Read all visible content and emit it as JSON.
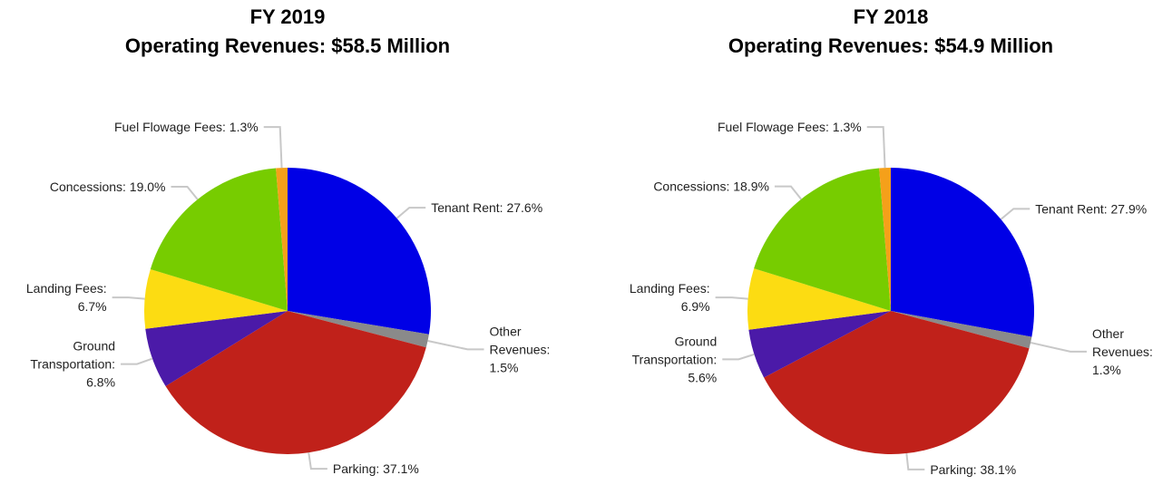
{
  "chart_data": [
    {
      "type": "pie",
      "title": "FY 2019",
      "subtitle": "Operating Revenues: $58.5 Million",
      "values": [
        27.6,
        1.5,
        37.1,
        6.8,
        6.7,
        19.0,
        1.3
      ],
      "value_labels": [
        "Tenant Rent: 27.6%",
        "Other\nRevenues:\n1.5%",
        "Parking: 37.1%",
        "Ground\nTransportation:\n6.8%",
        "Landing Fees:\n6.7%",
        "Concessions: 19.0%",
        "Fuel Flowage Fees: 1.3%"
      ],
      "colors": [
        "#0000e6",
        "#8a8a8a",
        "#c0211a",
        "#4b1aa8",
        "#fcdc12",
        "#77cc00",
        "#f5a01a"
      ]
    },
    {
      "type": "pie",
      "title": "FY 2018",
      "subtitle": "Operating Revenues: $54.9 Million",
      "values": [
        27.9,
        1.3,
        38.1,
        5.6,
        6.9,
        18.9,
        1.3
      ],
      "value_labels": [
        "Tenant Rent: 27.9%",
        "Other\nRevenues:\n1.3%",
        "Parking: 38.1%",
        "Ground\nTransportation:\n5.6%",
        "Landing Fees:\n6.9%",
        "Concessions: 18.9%",
        "Fuel Flowage Fees: 1.3%"
      ],
      "colors": [
        "#0000e6",
        "#8a8a8a",
        "#c0211a",
        "#4b1aa8",
        "#fcdc12",
        "#77cc00",
        "#f5a01a"
      ]
    }
  ]
}
